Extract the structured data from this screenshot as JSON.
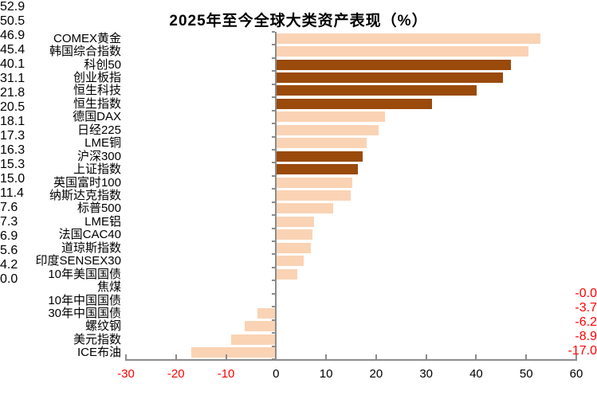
{
  "title": "2025年至今全球大类资产表现（%）",
  "colors": {
    "bar_light": "#FAD3B4",
    "bar_dark": "#9A4A0B",
    "negative_text": "#FF0000",
    "positive_text": "#000000",
    "axis": "#8C8C8C",
    "title_text": "#000000"
  },
  "chart_data": {
    "type": "bar",
    "orientation": "horizontal",
    "title": "2025年至今全球大类资产表现（%）",
    "xlabel": "",
    "ylabel": "",
    "xlim": [
      -30,
      60
    ],
    "x_ticks": [
      -30,
      -20,
      -10,
      0,
      10,
      20,
      30,
      40,
      50,
      60
    ],
    "grid": false,
    "legend": "none",
    "categories": [
      "COMEX黄金",
      "韩国综合指数",
      "科创50",
      "创业板指",
      "恒生科技",
      "恒生指数",
      "德国DAX",
      "日经225",
      "LME铜",
      "沪深300",
      "上证指数",
      "英国富时100",
      "纳斯达克指数",
      "标普500",
      "LME铝",
      "法国CAC40",
      "道琼斯指数",
      "印度SENSEX30",
      "10年美国国债",
      "焦煤",
      "10年中国国债",
      "30年中国国债",
      "螺纹钢",
      "美元指数",
      "ICE布油"
    ],
    "values": [
      52.9,
      50.5,
      46.9,
      45.4,
      40.1,
      31.1,
      21.8,
      20.5,
      18.1,
      17.3,
      16.3,
      15.3,
      15.0,
      11.4,
      7.6,
      7.3,
      6.9,
      5.6,
      4.2,
      0.0,
      -0.0,
      -3.7,
      -6.2,
      -8.9,
      -17.0
    ],
    "value_labels": [
      "52.9",
      "50.5",
      "46.9",
      "45.4",
      "40.1",
      "31.1",
      "21.8",
      "20.5",
      "18.1",
      "17.3",
      "16.3",
      "15.3",
      "15.0",
      "11.4",
      "7.6",
      "7.3",
      "6.9",
      "5.6",
      "4.2",
      "0.0",
      "-0.0",
      "-3.7",
      "-6.2",
      "-8.9",
      "-17.0"
    ],
    "bar_colors": [
      "light",
      "light",
      "dark",
      "dark",
      "dark",
      "dark",
      "light",
      "light",
      "light",
      "dark",
      "dark",
      "light",
      "light",
      "light",
      "light",
      "light",
      "light",
      "light",
      "light",
      "light",
      "light",
      "light",
      "light",
      "light",
      "light"
    ]
  }
}
